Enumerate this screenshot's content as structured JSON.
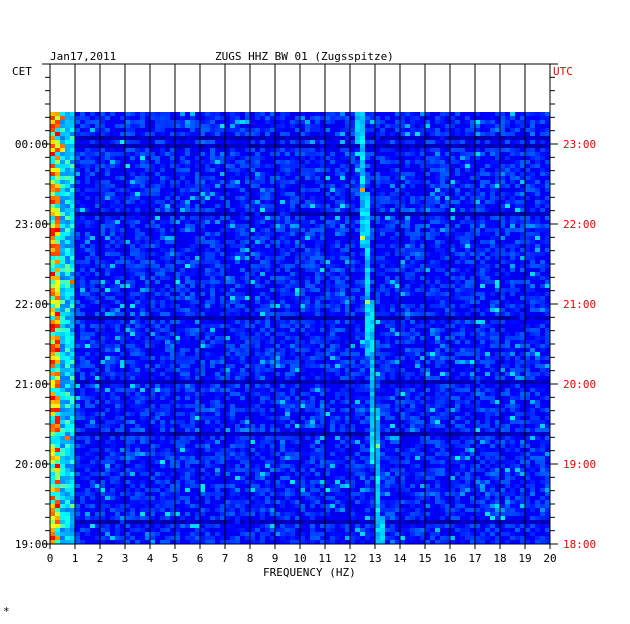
{
  "chart_data": {
    "type": "heatmap",
    "date": "Jan17,2011",
    "title": "ZUGS HHZ BW 01 (Zugsspitze)",
    "left_timezone": "CET",
    "right_timezone": "UTC",
    "xlabel": "FREQUENCY (HZ)",
    "xlim": [
      0,
      20
    ],
    "x_ticks": [
      "0",
      "1",
      "2",
      "3",
      "4",
      "5",
      "6",
      "7",
      "8",
      "9",
      "10",
      "11",
      "12",
      "13",
      "14",
      "15",
      "16",
      "17",
      "18",
      "19",
      "20"
    ],
    "cet_ticks": [
      "19:00",
      "20:00",
      "21:00",
      "22:00",
      "23:00",
      "00:00"
    ],
    "utc_ticks": [
      "18:00",
      "19:00",
      "20:00",
      "21:00",
      "22:00",
      "23:00"
    ],
    "time_range_hours": [
      18.0,
      23.4
    ],
    "vertical_gridlines": true,
    "footnote": "*",
    "colors": {
      "background": "#0000cc",
      "low": "#0000ff",
      "mid": "#00ccff",
      "high": "#ffff00",
      "peak": "#ff0000",
      "utc_text": "#ee0000"
    },
    "features": [
      {
        "description_label": "strong low-frequency energy",
        "freq_range": [
          0,
          1
        ]
      },
      {
        "description_label": "drifting spectral line",
        "freq_start": 12.4,
        "freq_end": 13.2
      }
    ]
  }
}
